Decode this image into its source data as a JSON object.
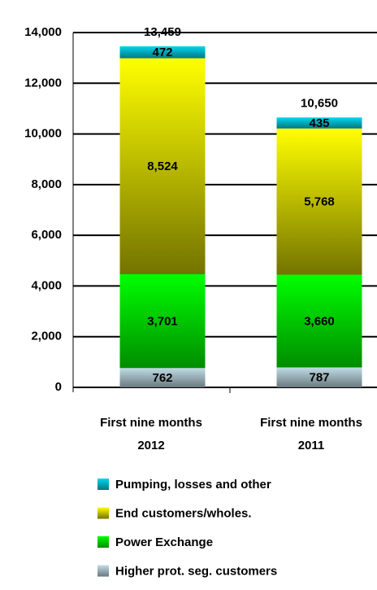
{
  "chart_data": {
    "type": "stacked_bar",
    "categories": [
      [
        "First nine months",
        "2012"
      ],
      [
        "First nine months",
        "2011"
      ]
    ],
    "series": [
      {
        "name": "Higher prot. seg. customers",
        "color": "#c0dce6",
        "values": [
          762,
          787
        ],
        "value_labels": [
          "762",
          "787"
        ]
      },
      {
        "name": "Power Exchange",
        "color": "#00ff00",
        "values": [
          3701,
          3660
        ],
        "value_labels": [
          "3,701",
          "3,660"
        ]
      },
      {
        "name": "End customers/wholes.",
        "color": "#ffff00",
        "values": [
          8524,
          5768
        ],
        "value_labels": [
          "8,524",
          "5,768"
        ]
      },
      {
        "name": "Pumping, losses and other",
        "color": "#00d8ec",
        "values": [
          472,
          435
        ],
        "value_labels": [
          "472",
          "435"
        ]
      }
    ],
    "totals": [
      13459,
      10650
    ],
    "total_labels": [
      "13,459",
      "10,650"
    ],
    "ylim": [
      0,
      14000
    ],
    "yticks": [
      0,
      {
        "value": 2000,
        "label": "2,000"
      },
      {
        "value": 4000,
        "label": "4,000"
      },
      {
        "value": 6000,
        "label": "6,000"
      },
      {
        "value": 8000,
        "label": "8,000"
      },
      {
        "value": 10000,
        "label": "10,000"
      },
      {
        "value": 12000,
        "label": "12,000"
      },
      {
        "value": 14000,
        "label": "14,000"
      }
    ],
    "grid": true
  }
}
